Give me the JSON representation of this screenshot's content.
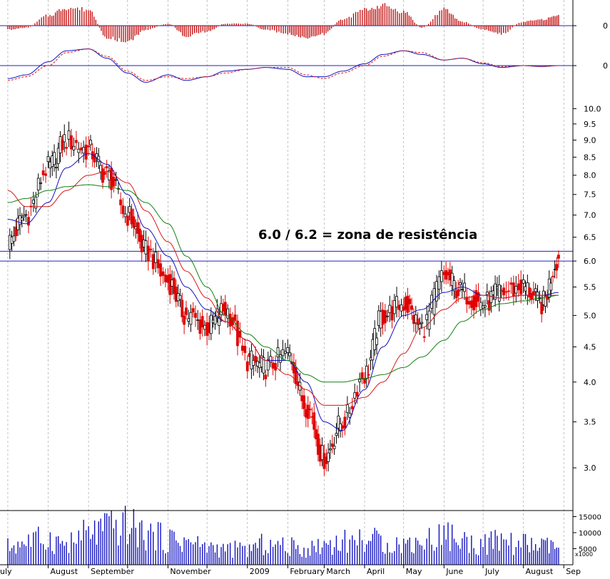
{
  "annotation": "6.0 / 6.2 = zona de resistência",
  "volume_unit": "x1000",
  "colors": {
    "up_candle": "#000000",
    "down_candle": "#e00000",
    "ma_short": "#1010c0",
    "ma_mid": "#d81818",
    "ma_long": "#108010",
    "histogram": "#c00000",
    "resistance": "#2020c0",
    "volume": "#1010c0",
    "grid": "#999999"
  },
  "chart_data": [
    {
      "type": "bar",
      "name": "histogram-oscillator",
      "x": [
        "2008-07-01",
        "2008-07-15",
        "2008-08-01",
        "2008-08-15",
        "2008-09-01",
        "2008-09-15",
        "2008-10-01",
        "2008-10-15",
        "2008-11-01",
        "2008-11-15",
        "2008-12-01",
        "2008-12-15",
        "2009-01-01",
        "2009-01-15",
        "2009-02-01",
        "2009-02-15",
        "2009-03-01",
        "2009-03-15",
        "2009-04-01",
        "2009-04-15",
        "2009-05-01",
        "2009-05-15",
        "2009-06-01",
        "2009-06-15",
        "2009-07-01",
        "2009-07-15",
        "2009-08-01",
        "2009-08-15",
        "2009-08-28"
      ],
      "values": [
        -0.2,
        -0.1,
        0.5,
        0.9,
        0.8,
        -0.6,
        -0.8,
        -0.2,
        0.1,
        -0.5,
        -0.3,
        0.1,
        0.1,
        -0.2,
        -0.4,
        -0.6,
        -0.4,
        0.3,
        0.8,
        1.0,
        0.7,
        -0.1,
        0.8,
        0.2,
        -0.2,
        -0.4,
        0.2,
        0.3,
        0.5
      ],
      "y_zero_label": "0"
    },
    {
      "type": "line",
      "name": "trend-oscillator",
      "x": [
        "2008-07-01",
        "2008-07-15",
        "2008-08-01",
        "2008-08-15",
        "2008-09-01",
        "2008-09-15",
        "2008-10-01",
        "2008-10-15",
        "2008-11-01",
        "2008-11-15",
        "2008-12-01",
        "2008-12-15",
        "2009-01-01",
        "2009-01-15",
        "2009-02-01",
        "2009-02-15",
        "2009-03-01",
        "2009-03-15",
        "2009-04-01",
        "2009-04-15",
        "2009-05-01",
        "2009-05-15",
        "2009-06-01",
        "2009-06-15",
        "2009-07-01",
        "2009-07-15",
        "2009-08-01",
        "2009-08-15",
        "2009-08-28"
      ],
      "series": [
        {
          "values": [
            -0.7,
            -0.5,
            0.2,
            0.8,
            0.9,
            0.4,
            -0.4,
            -0.9,
            -0.5,
            -0.8,
            -0.6,
            -0.3,
            -0.2,
            -0.1,
            -0.2,
            -0.6,
            -0.6,
            -0.3,
            0.1,
            0.6,
            0.8,
            0.6,
            0.3,
            0.4,
            0.1,
            -0.1,
            0.0,
            -0.05,
            0.0
          ]
        },
        {
          "values": [
            -0.8,
            -0.6,
            0.0,
            0.7,
            0.9,
            0.5,
            -0.3,
            -0.8,
            -0.6,
            -0.7,
            -0.6,
            -0.4,
            -0.2,
            -0.1,
            -0.1,
            -0.5,
            -0.7,
            -0.4,
            0.0,
            0.5,
            0.8,
            0.7,
            0.3,
            0.4,
            0.15,
            -0.05,
            0.0,
            -0.05,
            0.0
          ]
        }
      ],
      "y_zero_label": "0"
    },
    {
      "type": "line",
      "name": "price",
      "y_scale": "log",
      "ylim": [
        2.6,
        10.3
      ],
      "y_ticks": [
        "10.0",
        "9.5",
        "9.0",
        "8.5",
        "8.0",
        "7.5",
        "7.0",
        "6.5",
        "6.0",
        "5.5",
        "5.0",
        "4.5",
        "4.0",
        "3.5",
        "3.0"
      ],
      "x_ticks": [
        "uly",
        "August",
        "September",
        "November",
        "2009",
        "February",
        "March",
        "April",
        "May",
        "June",
        "July",
        "August",
        "Sep"
      ],
      "resistance_levels": [
        6.0,
        6.2
      ],
      "x": [
        "2008-07-01",
        "2008-07-15",
        "2008-08-01",
        "2008-08-15",
        "2008-09-01",
        "2008-09-15",
        "2008-10-01",
        "2008-10-15",
        "2008-11-01",
        "2008-11-15",
        "2008-12-01",
        "2008-12-15",
        "2009-01-01",
        "2009-01-15",
        "2009-02-01",
        "2009-02-15",
        "2009-03-01",
        "2009-03-15",
        "2009-04-01",
        "2009-04-15",
        "2009-05-01",
        "2009-05-15",
        "2009-06-01",
        "2009-06-15",
        "2009-07-01",
        "2009-07-15",
        "2009-08-01",
        "2009-08-15",
        "2009-08-28"
      ],
      "close": [
        6.4,
        7.0,
        8.2,
        9.0,
        8.7,
        8.0,
        7.0,
        6.2,
        5.6,
        5.0,
        4.8,
        5.1,
        4.3,
        4.2,
        4.4,
        3.7,
        3.1,
        3.5,
        4.1,
        5.0,
        5.2,
        4.8,
        5.7,
        5.4,
        5.2,
        5.4,
        5.5,
        5.2,
        6.05
      ],
      "series": [
        {
          "name": "ma_short",
          "values": [
            6.9,
            6.8,
            7.3,
            8.2,
            8.6,
            8.3,
            7.5,
            6.7,
            6.1,
            5.5,
            5.1,
            4.9,
            4.6,
            4.3,
            4.3,
            4.0,
            3.5,
            3.4,
            3.9,
            4.5,
            5.0,
            5.1,
            5.4,
            5.5,
            5.35,
            5.3,
            5.35,
            5.35,
            5.4
          ]
        },
        {
          "name": "ma_mid",
          "values": [
            7.6,
            7.2,
            7.2,
            7.6,
            8.0,
            8.1,
            7.8,
            7.1,
            6.4,
            5.8,
            5.3,
            4.9,
            4.6,
            4.3,
            4.1,
            3.9,
            3.7,
            3.7,
            3.8,
            4.0,
            4.4,
            4.8,
            5.1,
            5.3,
            5.35,
            5.3,
            5.35,
            5.35,
            5.35
          ]
        },
        {
          "name": "ma_long",
          "values": [
            7.3,
            7.4,
            7.6,
            7.7,
            7.75,
            7.7,
            7.6,
            7.3,
            6.8,
            6.1,
            5.5,
            5.0,
            4.7,
            4.5,
            4.3,
            4.1,
            4.0,
            4.0,
            4.05,
            4.1,
            4.2,
            4.35,
            4.6,
            4.9,
            5.1,
            5.2,
            5.25,
            5.3,
            5.35
          ]
        }
      ]
    },
    {
      "type": "bar",
      "name": "volume",
      "y_ticks": [
        "15000",
        "10000",
        "5000"
      ],
      "x": [
        "2008-07-01",
        "2008-07-15",
        "2008-08-01",
        "2008-08-15",
        "2008-09-01",
        "2008-09-15",
        "2008-10-01",
        "2008-10-15",
        "2008-11-01",
        "2008-11-15",
        "2008-12-01",
        "2008-12-15",
        "2009-01-01",
        "2009-01-15",
        "2009-02-01",
        "2009-02-15",
        "2009-03-01",
        "2009-03-15",
        "2009-04-01",
        "2009-04-15",
        "2009-05-01",
        "2009-05-15",
        "2009-06-01",
        "2009-06-15",
        "2009-07-01",
        "2009-07-15",
        "2009-08-01",
        "2009-08-15",
        "2009-08-28"
      ],
      "values": [
        7000,
        9000,
        10000,
        8000,
        12000,
        14000,
        15000,
        12000,
        10000,
        9000,
        7000,
        6000,
        6000,
        8000,
        7000,
        6000,
        8000,
        9000,
        10000,
        9000,
        8000,
        9000,
        12000,
        9000,
        8000,
        9000,
        8000,
        7000,
        7000
      ]
    }
  ]
}
